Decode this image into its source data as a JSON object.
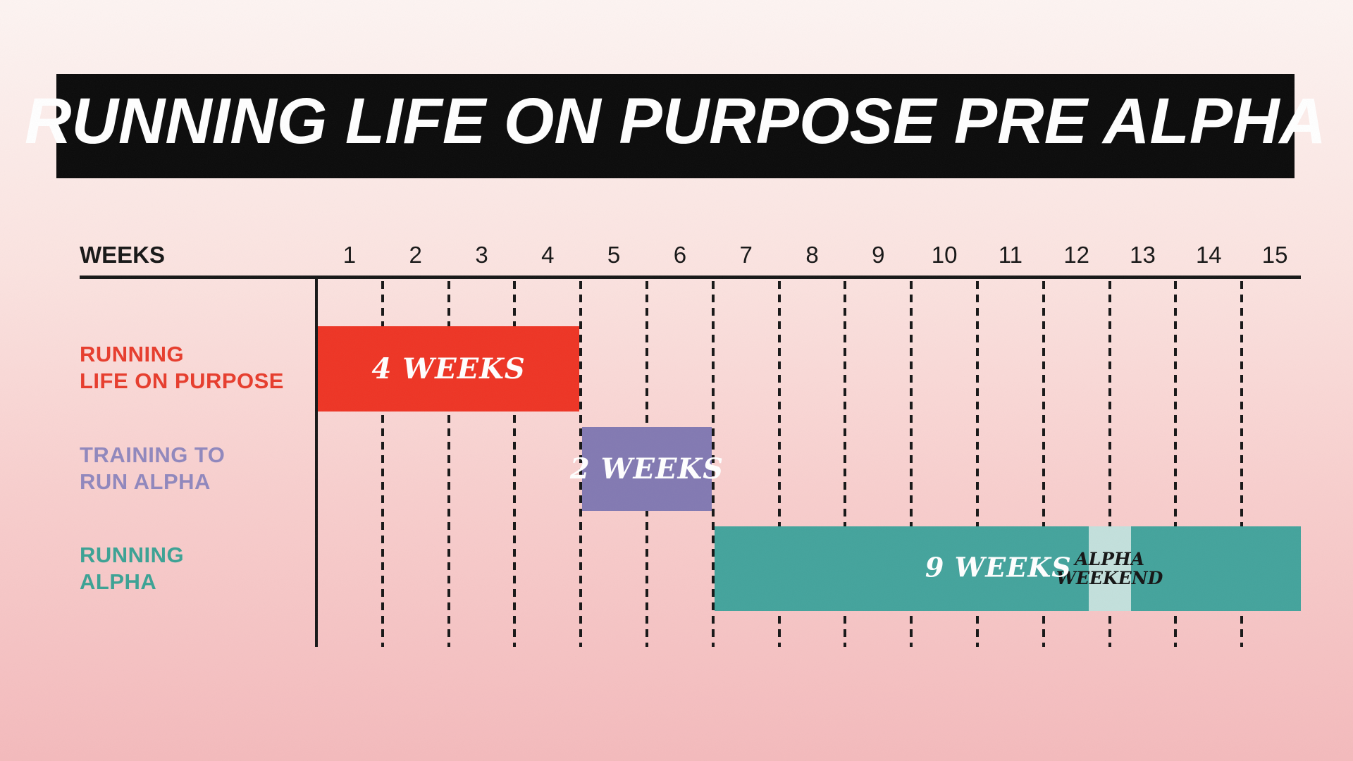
{
  "title": "RUNNING LIFE ON PURPOSE PRE ALPHA",
  "axis": {
    "label": "WEEKS",
    "weeks": [
      "1",
      "2",
      "3",
      "4",
      "5",
      "6",
      "7",
      "8",
      "9",
      "10",
      "11",
      "12",
      "13",
      "14",
      "15"
    ]
  },
  "tasks": [
    {
      "name_lines": [
        "RUNNING",
        "LIFE ON PURPOSE"
      ],
      "bar_label": "4 WEEKS",
      "start_week": 1,
      "end_week": 4,
      "duration_weeks": 4,
      "bar_color": "#ee3424",
      "label_color": "#e73c2c"
    },
    {
      "name_lines": [
        "TRAINING TO",
        "RUN ALPHA"
      ],
      "bar_label": "2 WEEKS",
      "start_week": 5,
      "end_week": 6,
      "duration_weeks": 2,
      "bar_color": "#8279b2",
      "label_color": "#9087bd"
    },
    {
      "name_lines": [
        "RUNNING",
        "ALPHA"
      ],
      "bar_label": "9 WEEKS",
      "start_week": 7,
      "end_week": 15,
      "duration_weeks": 9,
      "bar_color": "#43a39c",
      "label_color": "#3ba294",
      "highlight": {
        "label_lines": [
          "ALPHA",
          "WEEKEND"
        ],
        "start_weeks_elapsed": 11.68,
        "end_weeks_elapsed": 12.32,
        "color": "#c3e0dc",
        "text_color": "#141414"
      }
    }
  ],
  "colors": {
    "banner_background": "#0a0a0a",
    "title_text": "#ffffff",
    "axis_ink": "#161616",
    "background_top": "#fdf4f2",
    "background_bottom": "#f4babc"
  },
  "chart_data": {
    "type": "bar",
    "subtype": "gantt-timeline",
    "title": "RUNNING LIFE ON PURPOSE PRE ALPHA",
    "xlabel": "WEEKS",
    "x_ticks": [
      1,
      2,
      3,
      4,
      5,
      6,
      7,
      8,
      9,
      10,
      11,
      12,
      13,
      14,
      15
    ],
    "xlim": [
      0,
      15
    ],
    "grid": "dashed vertical line at every week boundary, solid line at week 1 start",
    "legend": false,
    "tasks": [
      {
        "name": "RUNNING LIFE ON PURPOSE",
        "start_week": 1,
        "end_week": 4,
        "duration_weeks": 4,
        "bar_label": "4 WEEKS",
        "color": "#ee3424"
      },
      {
        "name": "TRAINING TO RUN ALPHA",
        "start_week": 5,
        "end_week": 6,
        "duration_weeks": 2,
        "bar_label": "2 WEEKS",
        "color": "#8279b2"
      },
      {
        "name": "RUNNING ALPHA",
        "start_week": 7,
        "end_week": 15,
        "duration_weeks": 9,
        "bar_label": "9 WEEKS",
        "color": "#43a39c"
      }
    ],
    "annotations": [
      {
        "text": "ALPHA WEEKEND",
        "span_weeks_elapsed": [
          11.68,
          12.32
        ],
        "row": "RUNNING ALPHA",
        "color": "#c3e0dc"
      }
    ]
  }
}
